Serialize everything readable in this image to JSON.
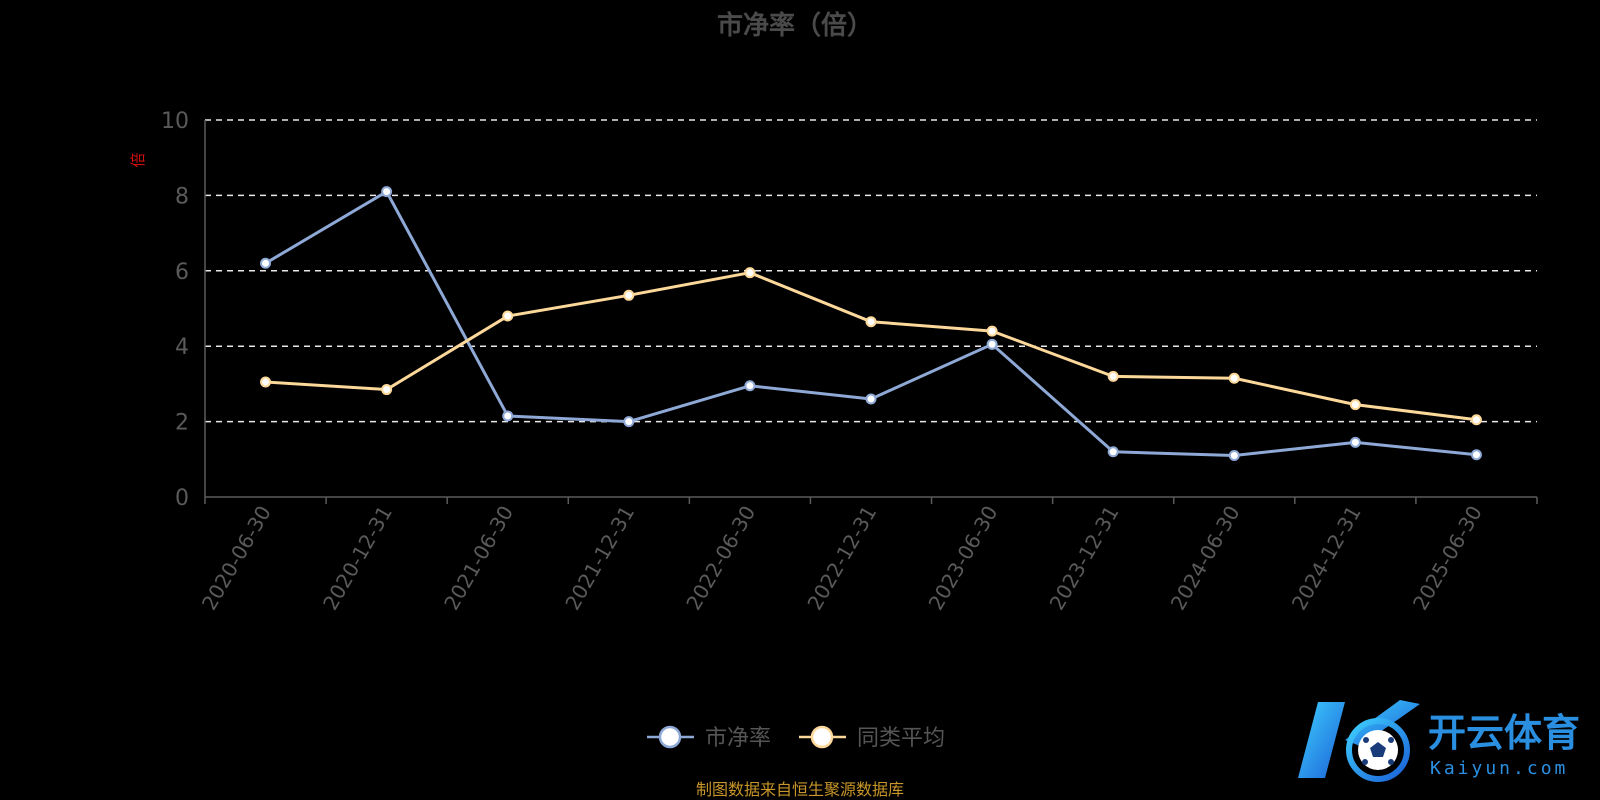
{
  "chart_data": {
    "type": "line",
    "title": "市净率（倍）",
    "ylabel": "倍",
    "xlabel": "",
    "ylim": [
      0,
      10
    ],
    "yticks": [
      0,
      2,
      4,
      6,
      8,
      10
    ],
    "grid": true,
    "legend_position": "bottom-center",
    "categories": [
      "2020-06-30",
      "2020-12-31",
      "2021-06-30",
      "2021-12-31",
      "2022-06-30",
      "2022-12-31",
      "2023-06-30",
      "2023-12-31",
      "2024-06-30",
      "2024-12-31",
      "2025-06-30"
    ],
    "series": [
      {
        "name": "市净率",
        "color": "#8fa9d6",
        "values": [
          6.2,
          8.1,
          2.15,
          2.0,
          2.95,
          2.6,
          4.05,
          1.2,
          1.1,
          1.45,
          1.12
        ]
      },
      {
        "name": "同类平均",
        "color": "#fcd89a",
        "values": [
          3.05,
          2.85,
          4.8,
          5.35,
          5.95,
          4.65,
          4.4,
          3.2,
          3.15,
          2.45,
          2.05
        ]
      }
    ]
  },
  "source": "制图数据来自恒生聚源数据库",
  "logo": {
    "name_cn": "开云体育",
    "domain": "Kaiyun.com"
  }
}
